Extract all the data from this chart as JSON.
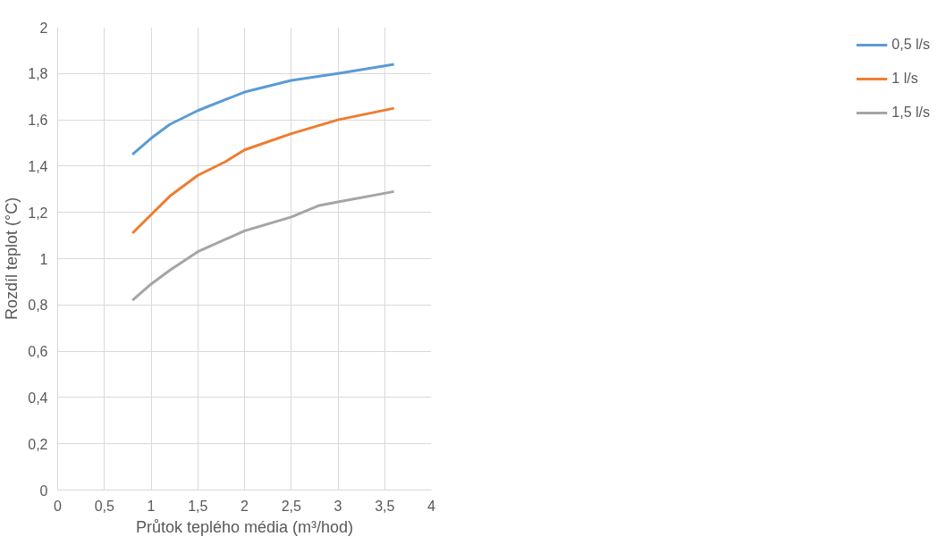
{
  "chart_data": {
    "type": "line",
    "xlabel": "Průtok teplého média (m³/hod)",
    "ylabel": "Rozdíl teplot (°C)",
    "xlim": [
      0,
      4
    ],
    "ylim": [
      0,
      2
    ],
    "xticks": [
      0,
      {
        "value": 0.5,
        "label": "0,5"
      },
      1,
      {
        "value": 1.5,
        "label": "1,5"
      },
      2,
      {
        "value": 2.5,
        "label": "2,5"
      },
      3,
      {
        "value": 3.5,
        "label": "3,5"
      },
      4
    ],
    "yticks": [
      0,
      {
        "value": 0.2,
        "label": "0,2"
      },
      {
        "value": 0.4,
        "label": "0,4"
      },
      {
        "value": 0.6,
        "label": "0,6"
      },
      {
        "value": 0.8,
        "label": "0,8"
      },
      1,
      {
        "value": 1.2,
        "label": "1,2"
      },
      {
        "value": 1.4,
        "label": "1,4"
      },
      {
        "value": 1.6,
        "label": "1,6"
      },
      {
        "value": 1.8,
        "label": "1,8"
      },
      2
    ],
    "grid": true,
    "legend": "right",
    "marker": "none",
    "line_style": "solid",
    "series": [
      {
        "name": "0,5 l/s",
        "color": "#5b9bd5",
        "x": [
          0.8,
          1.0,
          1.2,
          1.5,
          2.0,
          2.5,
          3.0,
          3.6
        ],
        "values": [
          1.45,
          1.52,
          1.58,
          1.64,
          1.72,
          1.77,
          1.8,
          1.84
        ]
      },
      {
        "name": "1 l/s",
        "color": "#ed7d31",
        "x": [
          0.8,
          1.0,
          1.2,
          1.5,
          1.8,
          2.0,
          2.5,
          3.0,
          3.6
        ],
        "values": [
          1.11,
          1.19,
          1.27,
          1.36,
          1.42,
          1.47,
          1.54,
          1.6,
          1.65
        ]
      },
      {
        "name": "1,5 l/s",
        "color": "#a5a5a5",
        "x": [
          0.8,
          1.0,
          1.2,
          1.5,
          2.0,
          2.5,
          2.8,
          3.0,
          3.6
        ],
        "values": [
          0.82,
          0.89,
          0.95,
          1.03,
          1.12,
          1.18,
          1.23,
          1.245,
          1.29
        ]
      }
    ]
  }
}
